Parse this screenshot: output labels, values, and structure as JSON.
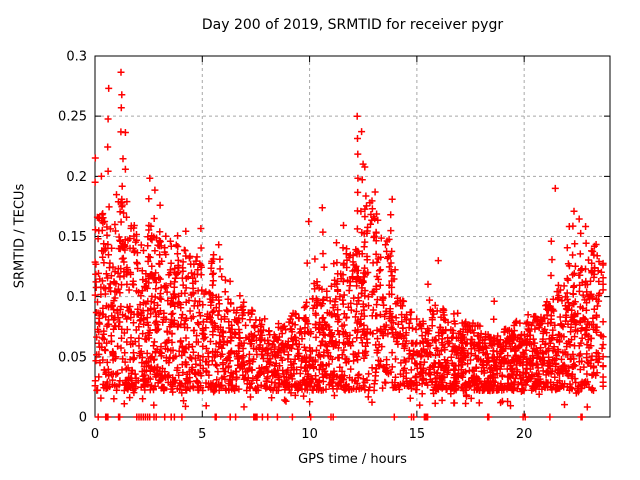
{
  "chart_data": {
    "type": "scatter",
    "title": "Day 200 of 2019, SRMTID for receiver pygr",
    "xlabel": "GPS time / hours",
    "ylabel": "SRMTID / TECUs",
    "xlim": [
      0,
      24
    ],
    "ylim": [
      0,
      0.3
    ],
    "xticks": {
      "values": [
        0,
        5,
        10,
        15,
        20
      ],
      "labels": [
        "0",
        "5",
        "10",
        "15",
        "20"
      ]
    },
    "yticks": {
      "values": [
        0,
        0.05,
        0.1,
        0.15,
        0.2,
        0.25,
        0.3
      ],
      "labels": [
        "0",
        "0.05",
        "0.1",
        "0.15",
        "0.2",
        "0.25",
        "0.3"
      ]
    },
    "grid": {
      "shown": true,
      "color": "#a8a8a8",
      "dash": "3,3"
    },
    "frame_color": "#000000",
    "marker": {
      "shape": "plus",
      "color": "#ff0000",
      "size": 7,
      "stroke_width": 1.5
    },
    "legend": "none",
    "seed": 7,
    "point_cloud": {
      "comment": "density envelope read from the plot: bins of 0.5 h as [start_hour, max_tecu, n_points]; min floor 0.022 TECU",
      "bin_hours": 0.5,
      "min_tecu": 0.022,
      "bias_exponent": 1.3,
      "bins": [
        [
          0,
          0.17,
          70
        ],
        [
          0.5,
          0.16,
          70
        ],
        [
          1,
          0.19,
          70
        ],
        [
          1.5,
          0.16,
          70
        ],
        [
          2,
          0.15,
          70
        ],
        [
          2.5,
          0.165,
          70
        ],
        [
          3,
          0.155,
          65
        ],
        [
          3.5,
          0.145,
          62
        ],
        [
          4,
          0.14,
          60
        ],
        [
          4.5,
          0.135,
          58
        ],
        [
          5,
          0.13,
          56
        ],
        [
          5.5,
          0.138,
          56
        ],
        [
          6,
          0.115,
          52
        ],
        [
          6.5,
          0.1,
          50
        ],
        [
          7,
          0.09,
          48
        ],
        [
          7.5,
          0.082,
          46
        ],
        [
          8,
          0.072,
          50
        ],
        [
          8.5,
          0.08,
          52
        ],
        [
          9,
          0.088,
          52
        ],
        [
          9.5,
          0.098,
          54
        ],
        [
          10,
          0.115,
          58
        ],
        [
          10.5,
          0.108,
          58
        ],
        [
          11,
          0.13,
          58
        ],
        [
          11.5,
          0.14,
          58
        ],
        [
          12,
          0.14,
          60
        ],
        [
          12.5,
          0.18,
          60
        ],
        [
          13,
          0.165,
          52
        ],
        [
          13.5,
          0.15,
          50
        ],
        [
          14,
          0.1,
          46
        ],
        [
          14.5,
          0.088,
          46
        ],
        [
          15,
          0.08,
          46
        ],
        [
          15.5,
          0.095,
          50
        ],
        [
          16,
          0.09,
          62
        ],
        [
          16.5,
          0.088,
          62
        ],
        [
          17,
          0.082,
          62
        ],
        [
          17.5,
          0.078,
          62
        ],
        [
          18,
          0.072,
          62
        ],
        [
          18.5,
          0.068,
          62
        ],
        [
          19,
          0.074,
          62
        ],
        [
          19.5,
          0.08,
          62
        ],
        [
          20,
          0.086,
          62
        ],
        [
          20.5,
          0.09,
          62
        ],
        [
          21,
          0.096,
          62
        ],
        [
          21.5,
          0.11,
          60
        ],
        [
          22,
          0.135,
          58
        ],
        [
          22.5,
          0.125,
          58
        ],
        [
          23,
          0.15,
          55
        ],
        [
          23.4,
          0.135,
          25
        ]
      ],
      "spike_columns_comment": "vertical satellite-pass streaks as [hour, top_tecu, n_points]",
      "spike_columns": [
        [
          0.02,
          0.215,
          5
        ],
        [
          0.6,
          0.272,
          7
        ],
        [
          1.26,
          0.29,
          9
        ],
        [
          1.45,
          0.24,
          5
        ],
        [
          2.55,
          0.197,
          7
        ],
        [
          2.8,
          0.19,
          5
        ],
        [
          3.0,
          0.175,
          5
        ],
        [
          3.53,
          0.152,
          5
        ],
        [
          3.9,
          0.155,
          5
        ],
        [
          4.2,
          0.16,
          5
        ],
        [
          4.97,
          0.155,
          6
        ],
        [
          5.8,
          0.138,
          5
        ],
        [
          6.74,
          0.1,
          4
        ],
        [
          9.9,
          0.157,
          4
        ],
        [
          10.3,
          0.13,
          5
        ],
        [
          10.62,
          0.175,
          6
        ],
        [
          11.3,
          0.148,
          6
        ],
        [
          11.55,
          0.155,
          5
        ],
        [
          12.2,
          0.25,
          9
        ],
        [
          12.45,
          0.232,
          7
        ],
        [
          12.62,
          0.212,
          6
        ],
        [
          13.1,
          0.19,
          6
        ],
        [
          13.8,
          0.185,
          7
        ],
        [
          15.55,
          0.115,
          4
        ],
        [
          18.6,
          0.1,
          3
        ],
        [
          21.3,
          0.145,
          6
        ],
        [
          22.05,
          0.155,
          7
        ],
        [
          22.3,
          0.17,
          8
        ],
        [
          22.6,
          0.165,
          7
        ],
        [
          22.9,
          0.158,
          6
        ],
        [
          23.15,
          0.14,
          5
        ]
      ],
      "outlier_points": [
        [
          21.45,
          0.19
        ],
        [
          16.0,
          0.13
        ],
        [
          18.9,
          0.012
        ],
        [
          0.3,
          0.2
        ]
      ],
      "zero_value_hours": [
        0.15,
        0.5,
        0.55,
        0.6,
        1.1,
        1.15,
        1.95,
        2.05,
        2.15,
        2.25,
        2.35,
        2.45,
        2.55,
        2.75,
        2.85,
        3.25,
        3.55,
        3.7,
        4.05,
        5.6,
        5.65,
        6.3,
        6.55,
        7.4,
        7.45,
        7.5,
        7.55,
        7.8,
        8.05,
        8.5,
        9.2,
        10.05,
        11.0,
        11.1,
        13.95,
        14.75,
        14.85,
        15.35,
        15.4,
        15.45,
        15.5,
        18.3,
        18.35,
        19.95,
        20.05,
        21.2,
        22.65,
        22.7
      ]
    }
  }
}
